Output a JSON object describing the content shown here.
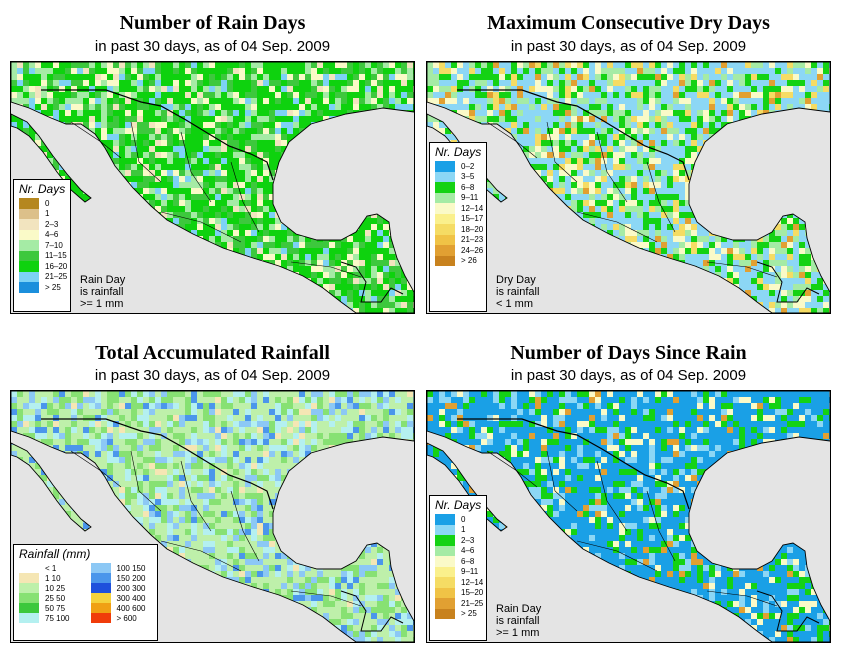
{
  "panels": [
    {
      "title": "Number of Rain Days",
      "subtitle": "in past 30 days, as of  04 Sep. 2009",
      "legend_title": "Nr. Days",
      "legend_items": [
        {
          "label": "0",
          "color": "#b5871f"
        },
        {
          "label": "1",
          "color": "#dcc08a"
        },
        {
          "label": "2–3",
          "color": "#f2e4bf"
        },
        {
          "label": "4–6",
          "color": "#fafac8"
        },
        {
          "label": "7–10",
          "color": "#a5eba5"
        },
        {
          "label": "11–15",
          "color": "#3dc83d"
        },
        {
          "label": "16–20",
          "color": "#0ed20e"
        },
        {
          "label": "21–25",
          "color": "#7dd2f5"
        },
        {
          "label": "> 25",
          "color": "#1b8fdc"
        }
      ],
      "note": [
        "Rain Day",
        "is rainfall",
        ">= 1 mm"
      ],
      "palette": [
        "#0ed20e",
        "#3dc83d",
        "#a5eba5",
        "#fafac8",
        "#7dd2f5",
        "#f2e4bf"
      ]
    },
    {
      "title": "Maximum Consecutive Dry Days",
      "subtitle": "in past 30 days, as of  04 Sep. 2009",
      "legend_title": "Nr. Days",
      "legend_items": [
        {
          "label": "0–2",
          "color": "#1aa0e6"
        },
        {
          "label": "3–5",
          "color": "#8cd7f5"
        },
        {
          "label": "6–8",
          "color": "#14d214"
        },
        {
          "label": "9–11",
          "color": "#a5eba5"
        },
        {
          "label": "12–14",
          "color": "#fafac8"
        },
        {
          "label": "15–17",
          "color": "#faf08c"
        },
        {
          "label": "18–20",
          "color": "#f5dc64"
        },
        {
          "label": "21–23",
          "color": "#f0c346"
        },
        {
          "label": "24–26",
          "color": "#e1a032"
        },
        {
          "label": "> 26",
          "color": "#c8821e"
        }
      ],
      "note": [
        "Dry Day",
        "is rainfall",
        "< 1 mm"
      ],
      "palette": [
        "#8cd7f5",
        "#14d214",
        "#a5eba5",
        "#fafac8",
        "#f5dc64",
        "#e1a032"
      ]
    },
    {
      "title": "Total Accumulated Rainfall",
      "subtitle": "in past 30 days, as of  04 Sep. 2009",
      "legend_title": "Rainfall (mm)",
      "legend_items": [
        {
          "label": "< 1",
          "color": "#ffffff"
        },
        {
          "label": "1   10",
          "color": "#f5e6b4"
        },
        {
          "label": "10   25",
          "color": "#bef0aa"
        },
        {
          "label": "25   50",
          "color": "#87e173"
        },
        {
          "label": "50   75",
          "color": "#3cc83c"
        },
        {
          "label": "75   100",
          "color": "#b4f0f0"
        },
        {
          "label": "100  150",
          "color": "#8cc8f5"
        },
        {
          "label": "150  200",
          "color": "#4b96eb"
        },
        {
          "label": "200  300",
          "color": "#1e50dc"
        },
        {
          "label": "300  400",
          "color": "#f5d23c"
        },
        {
          "label": "400  600",
          "color": "#f0a014"
        },
        {
          "label": "> 600",
          "color": "#f03c0a"
        }
      ],
      "palette": [
        "#bef0aa",
        "#87e173",
        "#b4f0f0",
        "#8cc8f5",
        "#4b96eb",
        "#f5e6b4"
      ]
    },
    {
      "title": "Number of Days Since Rain",
      "subtitle": "in past 30 days, as of  04 Sep. 2009",
      "legend_title": "Nr. Days",
      "legend_items": [
        {
          "label": "0",
          "color": "#1aa0e6"
        },
        {
          "label": "1",
          "color": "#8cd7f5"
        },
        {
          "label": "2–3",
          "color": "#14d214"
        },
        {
          "label": "4–6",
          "color": "#a5eba5"
        },
        {
          "label": "6–8",
          "color": "#fafac8"
        },
        {
          "label": "9–11",
          "color": "#faf08c"
        },
        {
          "label": "12–14",
          "color": "#f5dc64"
        },
        {
          "label": "15–20",
          "color": "#f0c346"
        },
        {
          "label": "21–25",
          "color": "#e1a032"
        },
        {
          "label": "> 25",
          "color": "#c8821e"
        }
      ],
      "note": [
        "Rain Day",
        "is rainfall",
        ">= 1 mm"
      ],
      "palette": [
        "#1aa0e6",
        "#1aa0e6",
        "#14d214",
        "#8cd7f5",
        "#fafac8",
        "#e1a032"
      ]
    }
  ]
}
